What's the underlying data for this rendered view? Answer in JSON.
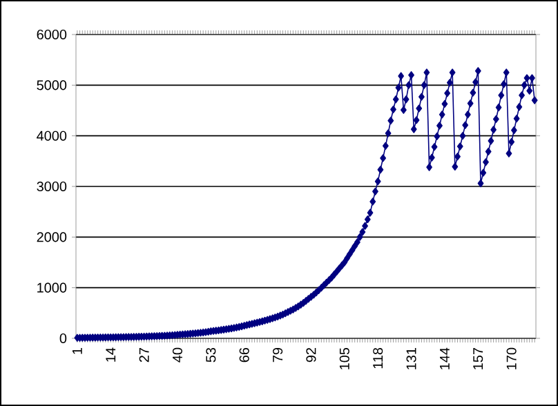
{
  "chart_data": {
    "type": "line",
    "color": "#000080",
    "marker": "diamond",
    "grid": "y",
    "ylim": [
      0,
      6000
    ],
    "yticks": [
      0,
      1000,
      2000,
      3000,
      4000,
      5000,
      6000
    ],
    "categories": [
      "1",
      null,
      null,
      null,
      null,
      null,
      null,
      null,
      null,
      null,
      null,
      null,
      null,
      "14",
      null,
      null,
      null,
      null,
      null,
      null,
      null,
      null,
      null,
      null,
      null,
      null,
      "27",
      null,
      null,
      null,
      null,
      null,
      null,
      null,
      null,
      null,
      null,
      null,
      null,
      "40",
      null,
      null,
      null,
      null,
      null,
      null,
      null,
      null,
      null,
      null,
      null,
      null,
      "53",
      null,
      null,
      null,
      null,
      null,
      null,
      null,
      null,
      null,
      null,
      null,
      null,
      "66",
      null,
      null,
      null,
      null,
      null,
      null,
      null,
      null,
      null,
      null,
      null,
      null,
      "79",
      null,
      null,
      null,
      null,
      null,
      null,
      null,
      null,
      null,
      null,
      null,
      null,
      "92",
      null,
      null,
      null,
      null,
      null,
      null,
      null,
      null,
      null,
      null,
      null,
      null,
      "105",
      null,
      null,
      null,
      null,
      null,
      null,
      null,
      null,
      null,
      null,
      null,
      null,
      "118",
      null,
      null,
      null,
      null,
      null,
      null,
      null,
      null,
      null,
      null,
      null,
      null,
      "131",
      null,
      null,
      null,
      null,
      null,
      null,
      null,
      null,
      null,
      null,
      null,
      null,
      "144",
      null,
      null,
      null,
      null,
      null,
      null,
      null,
      null,
      null,
      null,
      null,
      null,
      "157",
      null,
      null,
      null,
      null,
      null,
      null,
      null,
      null,
      null,
      null,
      null,
      null,
      "170",
      null,
      null,
      null,
      null,
      null,
      null,
      null,
      null,
      null
    ],
    "values": [
      10,
      10,
      12,
      12,
      13,
      14,
      15,
      15,
      16,
      17,
      18,
      19,
      20,
      20,
      21,
      22,
      23,
      24,
      25,
      26,
      27,
      28,
      29,
      30,
      32,
      33,
      35,
      37,
      39,
      41,
      43,
      45,
      47,
      49,
      52,
      55,
      58,
      62,
      66,
      70,
      74,
      78,
      82,
      86,
      90,
      95,
      100,
      105,
      110,
      116,
      122,
      130,
      140,
      146,
      152,
      158,
      165,
      172,
      180,
      188,
      196,
      205,
      215,
      225,
      237,
      250,
      262,
      274,
      286,
      298,
      310,
      323,
      336,
      350,
      365,
      380,
      396,
      412,
      430,
      450,
      470,
      495,
      520,
      545,
      570,
      600,
      630,
      665,
      700,
      740,
      780,
      820,
      860,
      905,
      950,
      1000,
      1050,
      1100,
      1150,
      1200,
      1260,
      1320,
      1380,
      1440,
      1500,
      1580,
      1660,
      1740,
      1820,
      1900,
      2000,
      2100,
      2220,
      2350,
      2480,
      2700,
      2900,
      3100,
      3330,
      3560,
      3800,
      4050,
      4300,
      4520,
      4720,
      4950,
      5180,
      4510,
      4720,
      5000,
      5200,
      4130,
      4310,
      4540,
      4770,
      5000,
      5250,
      3380,
      3570,
      3780,
      3990,
      4200,
      4420,
      4630,
      4840,
      5050,
      5250,
      3390,
      3590,
      3790,
      4000,
      4210,
      4420,
      4640,
      4850,
      5060,
      5280,
      3060,
      3270,
      3480,
      3690,
      3900,
      4120,
      4330,
      4560,
      4800,
      5020,
      5250,
      3650,
      3880,
      4110,
      4340,
      4570,
      4800,
      5000,
      5140,
      4890,
      5140,
      4700
    ]
  }
}
